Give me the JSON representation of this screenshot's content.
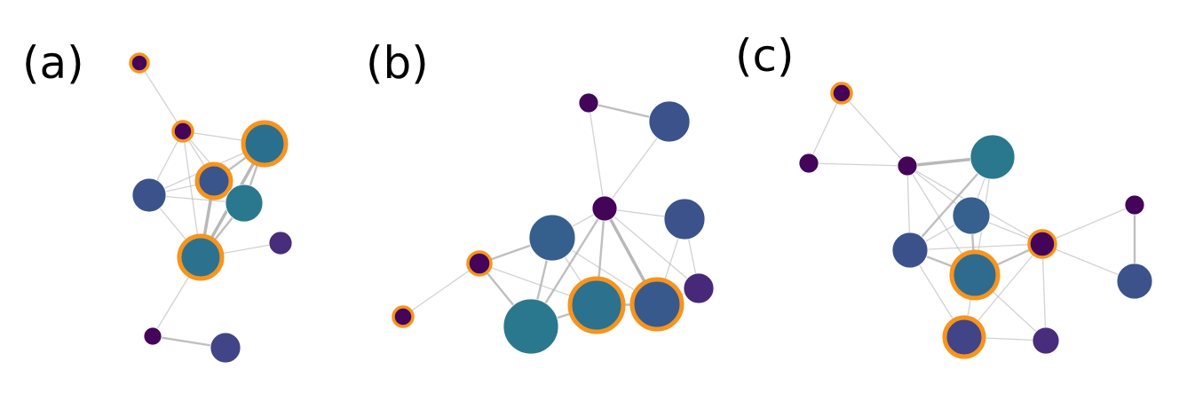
{
  "panels": [
    {
      "label": "(a)",
      "nodes": [
        {
          "id": "a1",
          "color": "#44045a",
          "highlighted": true
        },
        {
          "id": "a2",
          "color": "#44045a",
          "highlighted": true
        },
        {
          "id": "a3",
          "color": "#2b6f8e",
          "highlighted": true
        },
        {
          "id": "a4",
          "color": "#39558c",
          "highlighted": true
        },
        {
          "id": "a5",
          "color": "#3b528b",
          "highlighted": false
        },
        {
          "id": "a6",
          "color": "#2a788e",
          "highlighted": false
        },
        {
          "id": "a7",
          "color": "#2c728e",
          "highlighted": true
        },
        {
          "id": "a8",
          "color": "#472d7b",
          "highlighted": false
        },
        {
          "id": "a9",
          "color": "#44045a",
          "highlighted": false
        },
        {
          "id": "a10",
          "color": "#414487",
          "highlighted": false
        }
      ],
      "edges": [
        [
          "a1",
          "a2",
          1
        ],
        [
          "a2",
          "a3",
          1
        ],
        [
          "a2",
          "a4",
          1
        ],
        [
          "a2",
          "a5",
          1
        ],
        [
          "a2",
          "a6",
          1
        ],
        [
          "a2",
          "a7",
          1
        ],
        [
          "a3",
          "a4",
          2
        ],
        [
          "a3",
          "a6",
          2
        ],
        [
          "a3",
          "a7",
          3
        ],
        [
          "a3",
          "a5",
          1
        ],
        [
          "a4",
          "a5",
          1
        ],
        [
          "a4",
          "a6",
          2
        ],
        [
          "a4",
          "a7",
          3
        ],
        [
          "a5",
          "a7",
          1
        ],
        [
          "a5",
          "a6",
          1
        ],
        [
          "a6",
          "a7",
          2
        ],
        [
          "a7",
          "a8",
          1
        ],
        [
          "a7",
          "a9",
          1
        ],
        [
          "a9",
          "a10",
          2
        ]
      ]
    },
    {
      "label": "(b)",
      "nodes": [
        {
          "id": "b1",
          "color": "#44045a",
          "highlighted": false
        },
        {
          "id": "b2",
          "color": "#3b528b",
          "highlighted": false
        },
        {
          "id": "b3",
          "color": "#44045a",
          "highlighted": false
        },
        {
          "id": "b4",
          "color": "#3b528b",
          "highlighted": false
        },
        {
          "id": "b5",
          "color": "#355f8d",
          "highlighted": false
        },
        {
          "id": "b6",
          "color": "#44045a",
          "highlighted": true
        },
        {
          "id": "b7",
          "color": "#482878",
          "highlighted": false
        },
        {
          "id": "b8",
          "color": "#44045a",
          "highlighted": true
        },
        {
          "id": "b9",
          "color": "#2a788e",
          "highlighted": false
        },
        {
          "id": "b10",
          "color": "#2c718e",
          "highlighted": true
        },
        {
          "id": "b11",
          "color": "#38598c",
          "highlighted": true
        }
      ],
      "edges": [
        [
          "b1",
          "b2",
          2
        ],
        [
          "b2",
          "b3",
          1
        ],
        [
          "b1",
          "b3",
          1
        ],
        [
          "b3",
          "b4",
          1
        ],
        [
          "b3",
          "b5",
          1
        ],
        [
          "b3",
          "b9",
          2
        ],
        [
          "b3",
          "b10",
          2
        ],
        [
          "b3",
          "b11",
          3
        ],
        [
          "b3",
          "b7",
          1
        ],
        [
          "b4",
          "b11",
          1
        ],
        [
          "b4",
          "b7",
          1
        ],
        [
          "b5",
          "b6",
          2
        ],
        [
          "b5",
          "b9",
          2
        ],
        [
          "b5",
          "b10",
          1
        ],
        [
          "b5",
          "b11",
          1
        ],
        [
          "b6",
          "b9",
          2
        ],
        [
          "b6",
          "b10",
          1
        ],
        [
          "b6",
          "b8",
          1
        ],
        [
          "b9",
          "b10",
          2
        ],
        [
          "b10",
          "b11",
          2
        ],
        [
          "b11",
          "b7",
          1
        ]
      ]
    },
    {
      "label": "(c)",
      "nodes": [
        {
          "id": "c1",
          "color": "#44045a",
          "highlighted": true
        },
        {
          "id": "c2",
          "color": "#44045a",
          "highlighted": false
        },
        {
          "id": "c3",
          "color": "#44045a",
          "highlighted": false
        },
        {
          "id": "c4",
          "color": "#2a788e",
          "highlighted": false
        },
        {
          "id": "c5",
          "color": "#36608d",
          "highlighted": false
        },
        {
          "id": "c6",
          "color": "#44045a",
          "highlighted": false
        },
        {
          "id": "c7",
          "color": "#3b518b",
          "highlighted": false
        },
        {
          "id": "c8",
          "color": "#44045a",
          "highlighted": true
        },
        {
          "id": "c9",
          "color": "#2f6b8e",
          "highlighted": true
        },
        {
          "id": "c10",
          "color": "#3b528b",
          "highlighted": false
        },
        {
          "id": "c11",
          "color": "#414487",
          "highlighted": true
        },
        {
          "id": "c12",
          "color": "#472d7b",
          "highlighted": false
        }
      ],
      "edges": [
        [
          "c1",
          "c2",
          1
        ],
        [
          "c1",
          "c3",
          1
        ],
        [
          "c2",
          "c3",
          1
        ],
        [
          "c3",
          "c4",
          3
        ],
        [
          "c3",
          "c5",
          1
        ],
        [
          "c3",
          "c7",
          1
        ],
        [
          "c3",
          "c9",
          1
        ],
        [
          "c3",
          "c8",
          1
        ],
        [
          "c4",
          "c5",
          1
        ],
        [
          "c4",
          "c7",
          2
        ],
        [
          "c4",
          "c9",
          1
        ],
        [
          "c5",
          "c7",
          1
        ],
        [
          "c5",
          "c8",
          1
        ],
        [
          "c5",
          "c9",
          2
        ],
        [
          "c6",
          "c8",
          1
        ],
        [
          "c6",
          "c10",
          2
        ],
        [
          "c7",
          "c9",
          2
        ],
        [
          "c7",
          "c8",
          1
        ],
        [
          "c7",
          "c11",
          1
        ],
        [
          "c8",
          "c9",
          2
        ],
        [
          "c8",
          "c11",
          1
        ],
        [
          "c8",
          "c12",
          1
        ],
        [
          "c8",
          "c10",
          1
        ],
        [
          "c9",
          "c11",
          1
        ],
        [
          "c9",
          "c12",
          1
        ],
        [
          "c11",
          "c12",
          1
        ]
      ]
    }
  ],
  "colors": {
    "edge": "#b4b4b4",
    "highlight_ring": "#f7941d"
  }
}
